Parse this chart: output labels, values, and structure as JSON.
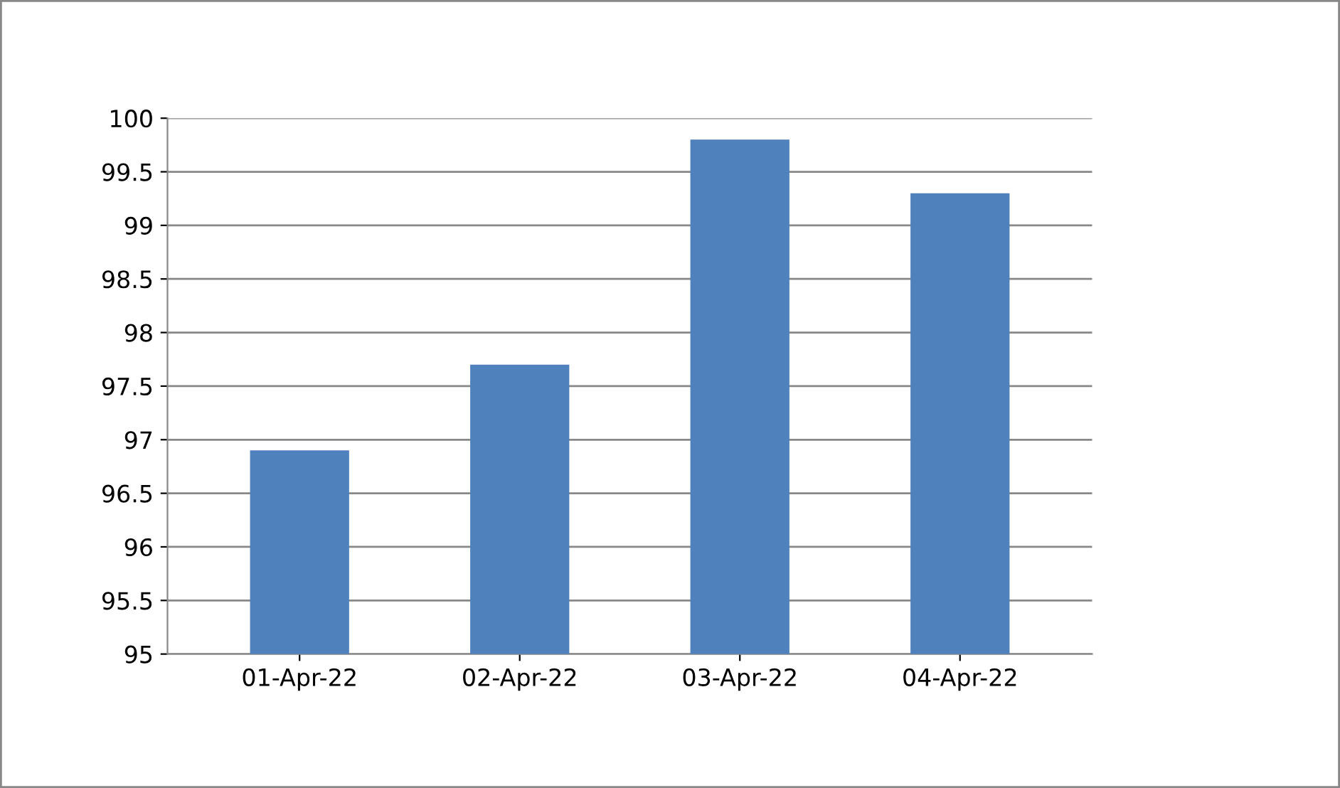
{
  "chart_data": {
    "type": "bar",
    "categories": [
      "01-Apr-22",
      "02-Apr-22",
      "03-Apr-22",
      "04-Apr-22"
    ],
    "values": [
      96.9,
      97.7,
      99.8,
      99.3
    ],
    "color": "#4f81bd",
    "ylim": [
      95,
      100
    ],
    "yticks": [
      95,
      95.5,
      96,
      96.5,
      97,
      97.5,
      98,
      98.5,
      99,
      99.5,
      100
    ],
    "grid": "y"
  }
}
